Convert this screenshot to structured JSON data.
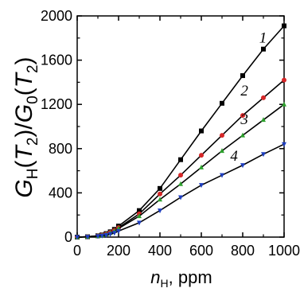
{
  "chart_data": {
    "type": "line",
    "title": "",
    "ylabel": "G_H(T_2)/G_0(T_2)",
    "xlabel": "n_H, ppm",
    "xlim": [
      0,
      1000
    ],
    "ylim": [
      0,
      2000
    ],
    "xticks": [
      0,
      200,
      400,
      600,
      800,
      1000
    ],
    "yticks": [
      0,
      400,
      800,
      1200,
      1600,
      2000
    ],
    "grid": false,
    "series": [
      {
        "name": "1",
        "color": "#000000",
        "marker": "square",
        "x": [
          0,
          50,
          100,
          120,
          140,
          160,
          180,
          200,
          300,
          400,
          500,
          600,
          700,
          800,
          900,
          1000
        ],
        "y": [
          0,
          3,
          12,
          20,
          32,
          48,
          70,
          100,
          240,
          440,
          700,
          960,
          1210,
          1460,
          1700,
          1910
        ]
      },
      {
        "name": "2",
        "color": "#d62728",
        "marker": "circle",
        "x": [
          0,
          50,
          100,
          120,
          140,
          160,
          180,
          200,
          300,
          400,
          500,
          600,
          700,
          800,
          900,
          1000
        ],
        "y": [
          0,
          3,
          11,
          18,
          28,
          42,
          60,
          85,
          210,
          390,
          560,
          740,
          920,
          1100,
          1260,
          1420
        ]
      },
      {
        "name": "3",
        "color": "#2ca02c",
        "marker": "triangle-up",
        "x": [
          0,
          50,
          100,
          120,
          140,
          160,
          180,
          200,
          300,
          400,
          500,
          600,
          700,
          800,
          900,
          1000
        ],
        "y": [
          0,
          3,
          10,
          16,
          25,
          38,
          55,
          78,
          190,
          340,
          480,
          630,
          780,
          920,
          1060,
          1200
        ]
      },
      {
        "name": "4",
        "color": "#1f3fbf",
        "marker": "triangle-down",
        "x": [
          0,
          50,
          100,
          120,
          140,
          160,
          180,
          200,
          300,
          400,
          500,
          600,
          700,
          800,
          900,
          1000
        ],
        "y": [
          0,
          2,
          8,
          12,
          18,
          27,
          38,
          55,
          130,
          240,
          360,
          470,
          560,
          650,
          750,
          840
        ]
      }
    ],
    "curve_label_positions": [
      {
        "label": "1",
        "x": 880,
        "y": 1760
      },
      {
        "label": "2",
        "x": 790,
        "y": 1280
      },
      {
        "label": "3",
        "x": 790,
        "y": 1020
      },
      {
        "label": "4",
        "x": 740,
        "y": 690
      }
    ],
    "xlabel_parts": {
      "base": "n",
      "sub": "H",
      "rest": ", ppm"
    },
    "ylabel_parts": [
      {
        "t": "G",
        "italic": true
      },
      {
        "t": "H",
        "sub": true
      },
      {
        "t": "(",
        "italic": false
      },
      {
        "t": "T",
        "italic": true
      },
      {
        "t": "2",
        "sub": true
      },
      {
        "t": ")/",
        "italic": false
      },
      {
        "t": "G",
        "italic": true
      },
      {
        "t": "0",
        "sub": true
      },
      {
        "t": "(",
        "italic": false
      },
      {
        "t": "T",
        "italic": true
      },
      {
        "t": "2",
        "sub": true
      },
      {
        "t": ")",
        "italic": false
      }
    ]
  }
}
